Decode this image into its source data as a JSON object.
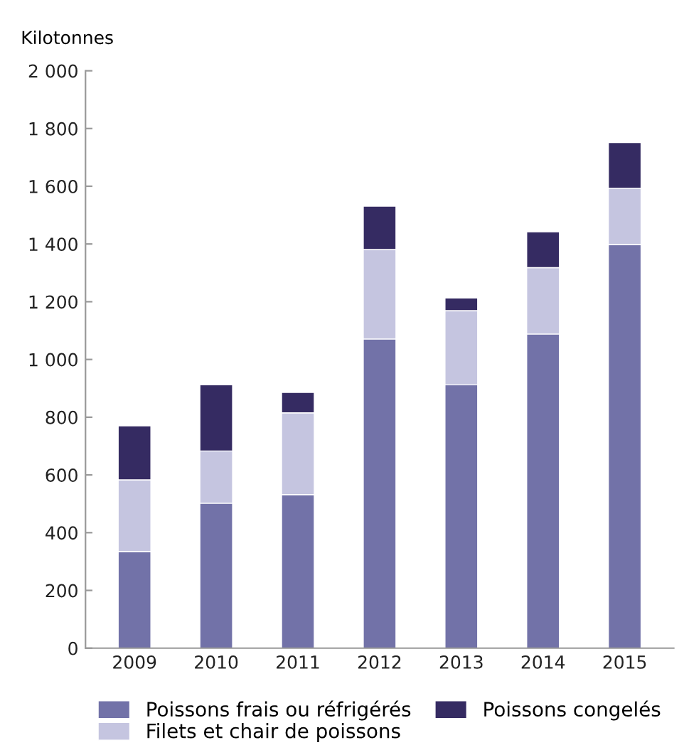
{
  "chart_data": {
    "type": "bar",
    "stacked": true,
    "ylabel": "Kilotonnes",
    "categories": [
      "2009",
      "2010",
      "2011",
      "2012",
      "2013",
      "2014",
      "2015"
    ],
    "series": [
      {
        "name": "Poissons frais ou réfrigérés",
        "color": "#7272a8",
        "values": [
          335,
          502,
          532,
          1071,
          912,
          1088,
          1398
        ]
      },
      {
        "name": "Filets et chair de poissons",
        "color": "#c5c5e0",
        "values": [
          248,
          181,
          283,
          310,
          257,
          230,
          195
        ]
      },
      {
        "name": "Poissons congelés",
        "color": "#352b62",
        "values": [
          187,
          229,
          71,
          150,
          44,
          124,
          158
        ]
      }
    ],
    "ylim": [
      0,
      2000
    ],
    "yticks": [
      0,
      {
        "value": 200,
        "label": "200"
      },
      {
        "value": 400,
        "label": "400"
      },
      {
        "value": 600,
        "label": "600"
      },
      {
        "value": 800,
        "label": "800"
      },
      {
        "value": 1000,
        "label": "1 000"
      },
      {
        "value": 1200,
        "label": "1 200"
      },
      {
        "value": 1400,
        "label": "1 400"
      },
      {
        "value": 1600,
        "label": "1 600"
      },
      {
        "value": 1800,
        "label": "1 800"
      },
      {
        "value": 2000,
        "label": "2 000"
      }
    ],
    "grid": false,
    "legend": "bottom"
  }
}
